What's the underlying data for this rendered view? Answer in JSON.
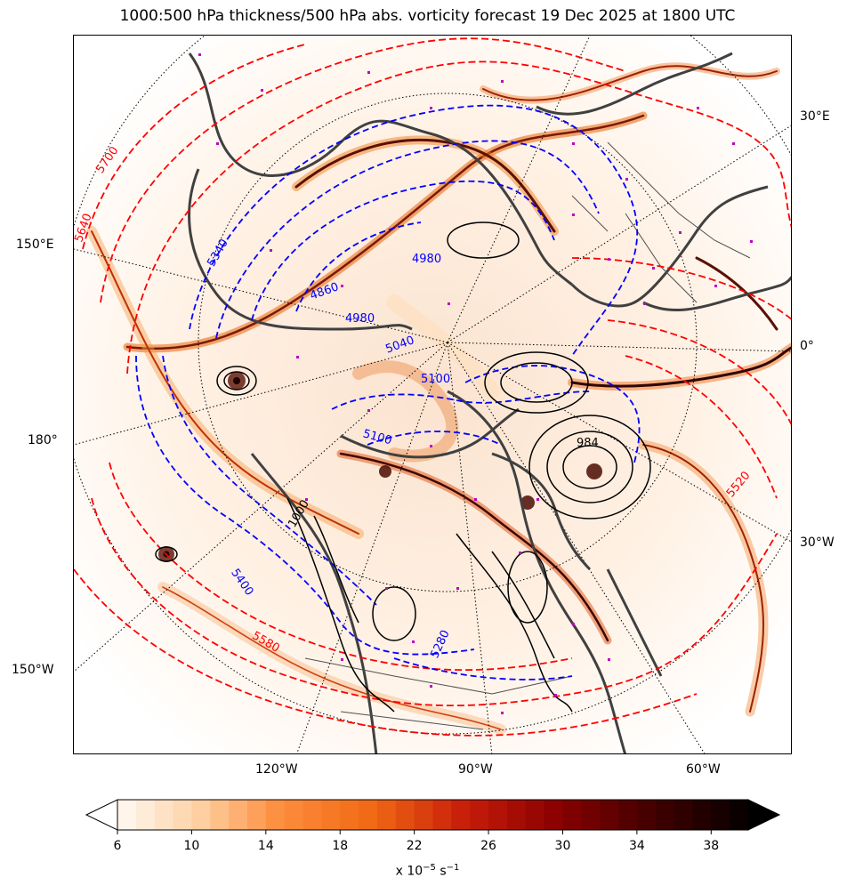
{
  "title": "1000:500 hPa thickness/500 hPa abs. vorticity forecast 19 Dec 2025 at 1800 UTC",
  "map": {
    "outer_longitude_labels": [
      {
        "text": "30°E"
      },
      {
        "text": "150°E"
      },
      {
        "text": "0°"
      },
      {
        "text": "180°"
      },
      {
        "text": "30°W"
      },
      {
        "text": "150°W"
      },
      {
        "text": "120°W"
      },
      {
        "text": "90°W"
      },
      {
        "text": "60°W"
      }
    ],
    "thickness_labels_red": [
      "5700",
      "5640",
      "5520",
      "5580"
    ],
    "thickness_labels_blue": [
      "5340",
      "4860",
      "4980",
      "5040",
      "5100",
      "5100",
      "5400",
      "5280",
      "4980"
    ],
    "pressure_labels_black": [
      "984",
      "1000"
    ],
    "colors": {
      "thickness_warm": "#ff0000",
      "thickness_cold": "#0000ff",
      "pressure": "#000000",
      "coastline": "#404040",
      "station": "#c000c0"
    }
  },
  "colorbar": {
    "min": 6,
    "max": 40,
    "step": 1,
    "ticks": [
      "6",
      "10",
      "14",
      "18",
      "22",
      "26",
      "30",
      "34",
      "38"
    ],
    "unit_prefix": "x 10",
    "unit_exponent": "−5",
    "unit_suffix": " s",
    "unit_exponent2": "−1",
    "extend": "both"
  }
}
